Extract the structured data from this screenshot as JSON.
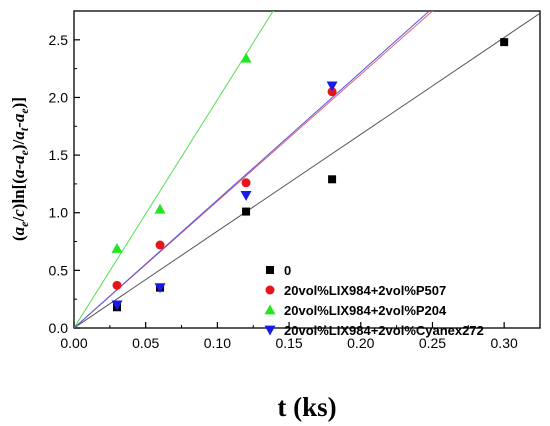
{
  "chart_data": {
    "type": "scatter",
    "xlabel": "t (ks)",
    "ylabel_parts": [
      {
        "t": "(",
        "style": "normal",
        "sub": false
      },
      {
        "t": "a",
        "style": "italic",
        "sub": false
      },
      {
        "t": "e",
        "style": "italic",
        "sub": true
      },
      {
        "t": "/",
        "style": "normal",
        "sub": false
      },
      {
        "t": "c",
        "style": "italic",
        "sub": false
      },
      {
        "t": ")ln[(",
        "style": "normal",
        "sub": false
      },
      {
        "t": "a",
        "style": "italic",
        "sub": false
      },
      {
        "t": "-",
        "style": "normal",
        "sub": false
      },
      {
        "t": "a",
        "style": "italic",
        "sub": false
      },
      {
        "t": "e",
        "style": "italic",
        "sub": true
      },
      {
        "t": ")/",
        "style": "normal",
        "sub": false
      },
      {
        "t": "a",
        "style": "italic",
        "sub": false
      },
      {
        "t": "t",
        "style": "italic",
        "sub": true
      },
      {
        "t": "-",
        "style": "normal",
        "sub": false
      },
      {
        "t": "a",
        "style": "italic",
        "sub": false
      },
      {
        "t": "e",
        "style": "italic",
        "sub": true
      },
      {
        "t": ")]",
        "style": "normal",
        "sub": false
      }
    ],
    "xlim": [
      0.0,
      0.325
    ],
    "ylim": [
      0.0,
      2.75
    ],
    "xticks": [
      "0.00",
      "0.05",
      "0.10",
      "0.15",
      "0.20",
      "0.25",
      "0.30"
    ],
    "yticks": [
      "0.0",
      "0.5",
      "1.0",
      "1.5",
      "2.0",
      "2.5"
    ],
    "legend_position": "bottom-right",
    "grid": false,
    "series": [
      {
        "name": "0",
        "marker": "square",
        "color": "#000000",
        "line_color": "#555555",
        "slope": 8.4,
        "x": [
          0.03,
          0.06,
          0.12,
          0.18,
          0.3
        ],
        "y": [
          0.18,
          0.35,
          1.01,
          1.29,
          2.48
        ]
      },
      {
        "name": "20vol%LIX984+2vol%P507",
        "marker": "circle",
        "color": "#e8141c",
        "line_color": "#e06070",
        "slope": 11.0,
        "x": [
          0.03,
          0.06,
          0.12,
          0.18
        ],
        "y": [
          0.37,
          0.72,
          1.26,
          2.05
        ]
      },
      {
        "name": "20vol%LIX984+2vol%P204",
        "marker": "triangle-up",
        "color": "#22e622",
        "line_color": "#55dd55",
        "slope": 19.8,
        "x": [
          0.03,
          0.06,
          0.12
        ],
        "y": [
          0.69,
          1.03,
          2.34
        ]
      },
      {
        "name": "20vol%LIX984+2vol%Cyanex272",
        "marker": "triangle-down",
        "color": "#1a1ae8",
        "line_color": "#5555dd",
        "slope": 11.1,
        "x": [
          0.03,
          0.06,
          0.12,
          0.18
        ],
        "y": [
          0.2,
          0.35,
          1.15,
          2.1
        ]
      }
    ]
  }
}
